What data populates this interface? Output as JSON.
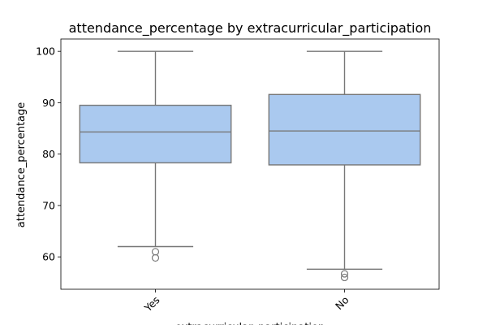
{
  "chart_data": {
    "type": "box",
    "title": "attendance_percentage by extracurricular_participation",
    "xlabel": "extracurricular_participation",
    "ylabel": "attendance_percentage",
    "ylim": [
      53.7,
      102.4
    ],
    "yticks": [
      60,
      70,
      80,
      90,
      100
    ],
    "categories": [
      "Yes",
      "No"
    ],
    "boxes": [
      {
        "category": "Yes",
        "whisker_low": 62.0,
        "q1": 78.3,
        "median": 84.3,
        "q3": 89.5,
        "whisker_high": 100.0,
        "outliers": [
          61.0,
          59.8
        ]
      },
      {
        "category": "No",
        "whisker_low": 57.6,
        "q1": 77.9,
        "median": 84.5,
        "q3": 91.6,
        "whisker_high": 100.0,
        "outliers": [
          56.7,
          56.0
        ]
      }
    ],
    "box_color": "#aac9ef",
    "line_color": "#777777",
    "grid": false,
    "legend": "none"
  }
}
